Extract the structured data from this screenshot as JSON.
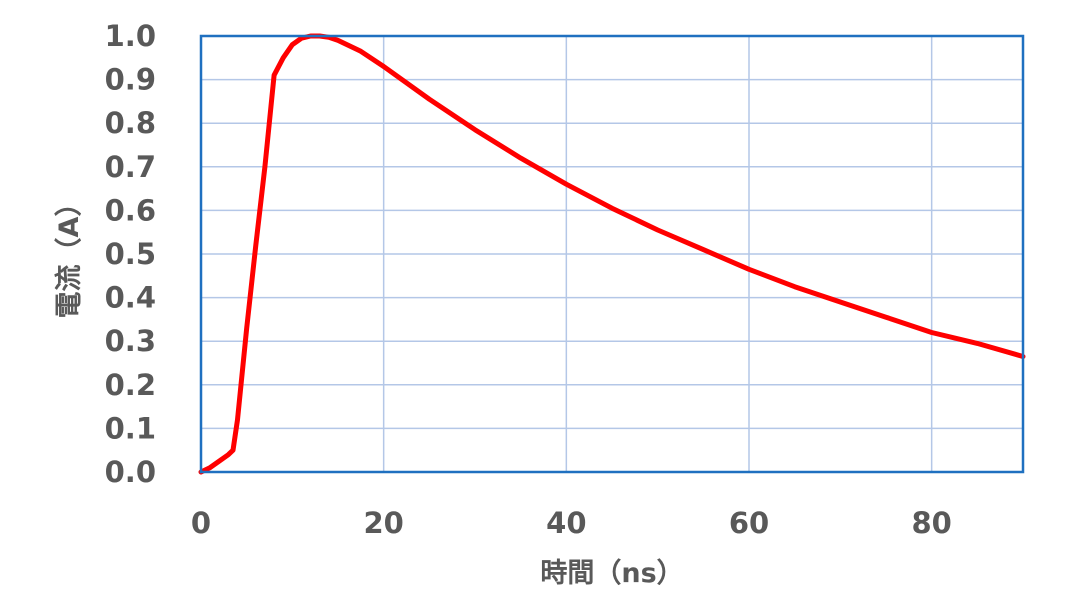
{
  "chart_data": {
    "type": "line",
    "title": "",
    "xlabel": "時間（ns）",
    "ylabel": "電流（A）",
    "xlim": [
      0,
      90
    ],
    "ylim": [
      0,
      1.0
    ],
    "x_ticks": [
      0,
      20,
      40,
      60,
      80
    ],
    "x_tick_labels": [
      "0",
      "20",
      "40",
      "60",
      "80"
    ],
    "y_ticks": [
      0.0,
      0.1,
      0.2,
      0.3,
      0.4,
      0.5,
      0.6,
      0.7,
      0.8,
      0.9,
      1.0
    ],
    "y_tick_labels": [
      "0.0",
      "0.1",
      "0.2",
      "0.3",
      "0.4",
      "0.5",
      "0.6",
      "0.7",
      "0.8",
      "0.9",
      "1.0"
    ],
    "grid": true,
    "legend": "none",
    "colors": {
      "series": "#ff0000",
      "grid": "#b4c7e7",
      "border": "#1f70c0",
      "text": "#595959"
    },
    "series": [
      {
        "x": [
          0,
          1,
          2,
          3,
          3.5,
          4,
          5,
          6,
          7,
          8,
          9,
          10,
          11,
          12,
          13,
          14,
          15,
          17.5,
          20,
          25,
          30,
          35,
          40,
          45,
          50,
          55,
          60,
          65,
          70,
          75,
          80,
          85,
          90
        ],
        "values": [
          0.0,
          0.01,
          0.025,
          0.04,
          0.05,
          0.12,
          0.33,
          0.52,
          0.7,
          0.91,
          0.95,
          0.98,
          0.995,
          1.0,
          1.0,
          0.997,
          0.99,
          0.965,
          0.93,
          0.855,
          0.785,
          0.72,
          0.66,
          0.605,
          0.555,
          0.51,
          0.465,
          0.425,
          0.39,
          0.355,
          0.32,
          0.295,
          0.265
        ]
      }
    ]
  }
}
